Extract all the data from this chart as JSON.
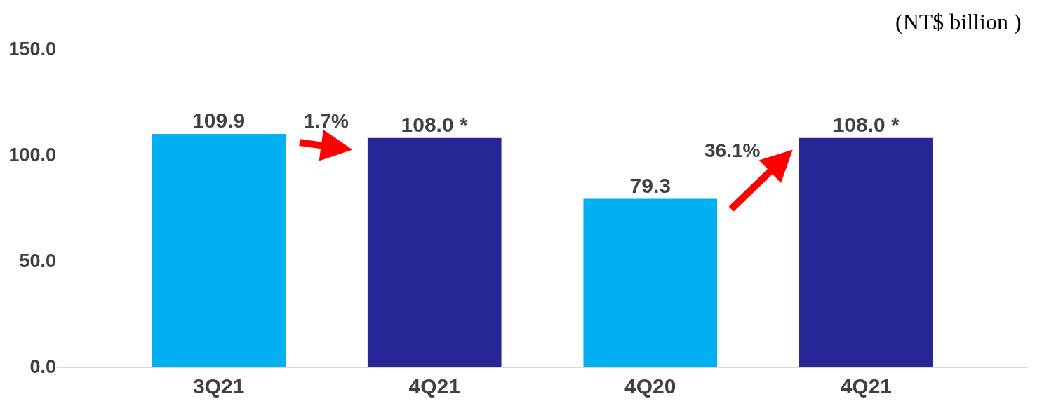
{
  "chart_data": {
    "type": "bar",
    "ylabel": "(NT$ billion )",
    "categories": [
      "3Q21",
      "4Q21",
      "4Q20",
      "4Q21"
    ],
    "values": [
      109.9,
      108.0,
      79.3,
      108.0
    ],
    "colors": [
      "#00b0f0",
      "#262696",
      "#00b0f0",
      "#262696"
    ],
    "value_labels": [
      "109.9",
      "108.0 *",
      "79.3",
      "108.0 *"
    ],
    "ylim": [
      0,
      150
    ],
    "yticks": [
      {
        "value": 0,
        "label": "0.0"
      },
      {
        "value": 50,
        "label": "50.0"
      },
      {
        "value": 100,
        "label": "100.0"
      },
      {
        "value": 150,
        "label": "150.0"
      }
    ],
    "annotations": [
      "1.7%",
      "36.1%"
    ],
    "legend": false
  }
}
